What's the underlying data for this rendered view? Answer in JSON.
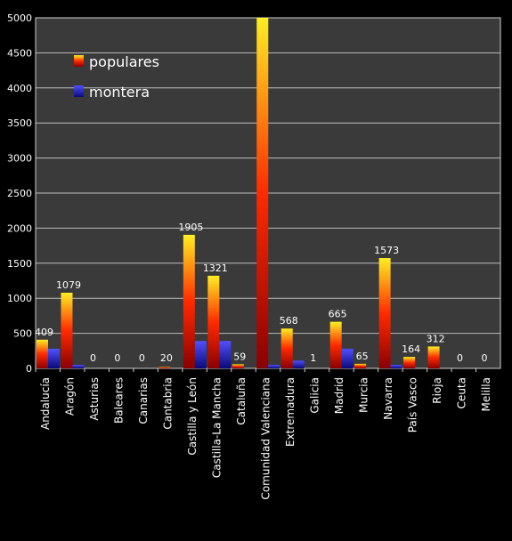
{
  "chart_data": {
    "type": "bar",
    "categories": [
      "Andalucía",
      "Aragón",
      "Asturias",
      "Baleares",
      "Canarias",
      "Cantabria",
      "Castilla y León",
      "Castilla-La Mancha",
      "Cataluña",
      "Comunidad Valenciana",
      "Extremadura",
      "Galicia",
      "Madrid",
      "Murcia",
      "Navarra",
      "País Vasco",
      "Rioja",
      "Ceuta",
      "Melilla"
    ],
    "series": [
      {
        "name": "populares",
        "values": [
          409,
          1079,
          0,
          0,
          0,
          20,
          1905,
          1321,
          59,
          5000,
          568,
          1,
          665,
          65,
          1573,
          164,
          312,
          0,
          0
        ],
        "labels": [
          "409",
          "1079",
          "0",
          "0",
          "0",
          "20",
          "1905",
          "1321",
          "59",
          "",
          "568",
          "1",
          "665",
          "65",
          "1573",
          "164",
          "312",
          "0",
          "0"
        ]
      },
      {
        "name": "montera",
        "values": [
          280,
          50,
          0,
          0,
          0,
          0,
          390,
          390,
          0,
          50,
          110,
          0,
          280,
          0,
          50,
          0,
          0,
          0,
          0
        ]
      }
    ],
    "ylim": [
      0,
      5000
    ],
    "yticks": [
      "0",
      "500",
      "1000",
      "1500",
      "2000",
      "2500",
      "3000",
      "3500",
      "4000",
      "4500",
      "5000"
    ],
    "grid": true,
    "legend": "top-left",
    "colors": {
      "populares_top": "#ffee22",
      "populares_mid": "#ff2a00",
      "populares_bottom": "#8a0000",
      "montera_top": "#4a4aff",
      "montera_bottom": "#0a0a7a",
      "plot_bg": "#3a3a3a",
      "gridline": "#bdbdbd",
      "page_bg": "#000000"
    }
  }
}
